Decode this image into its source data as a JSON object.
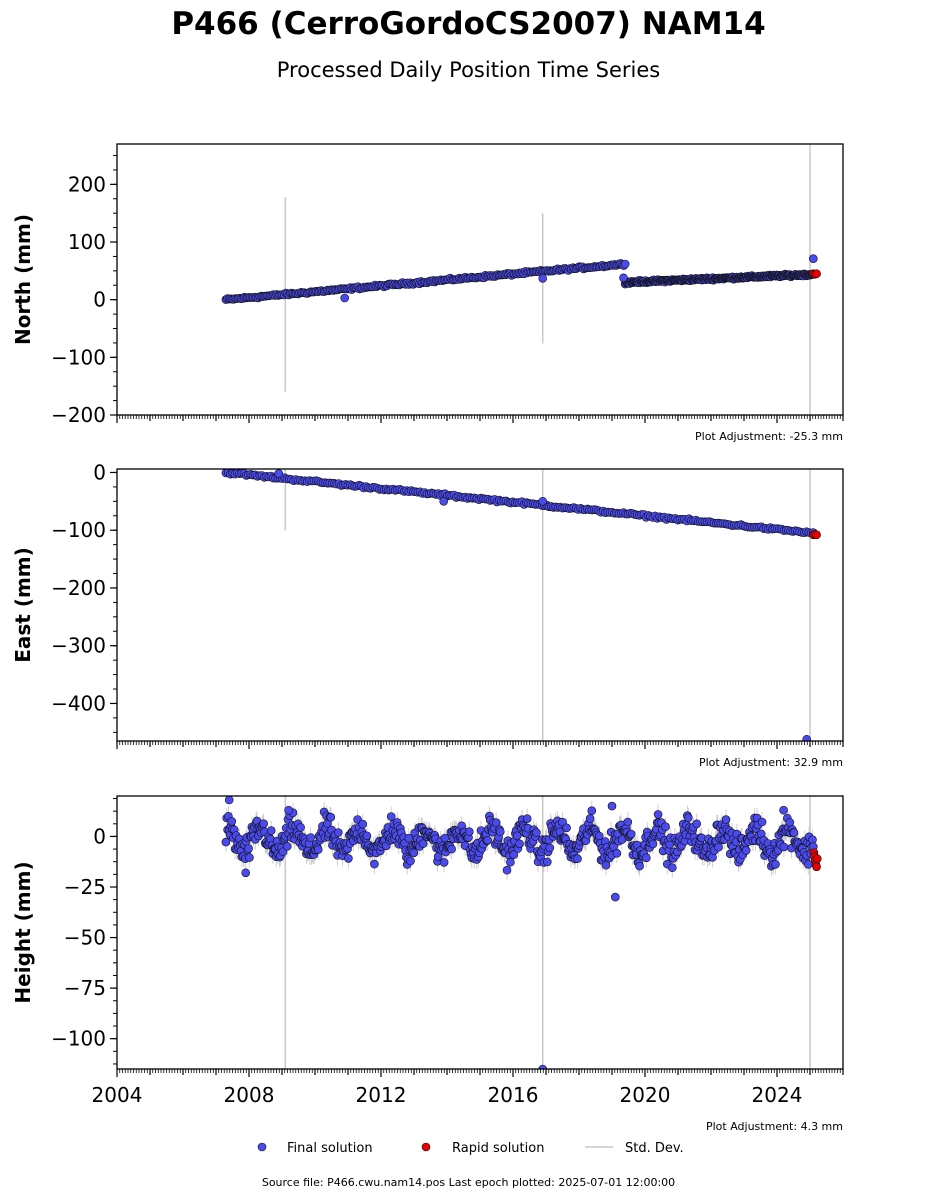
{
  "header": {
    "title": "P466 (CerroGordoCS2007) NAM14",
    "subtitle": "Processed Daily Position Time Series"
  },
  "legend": {
    "final": "Final solution",
    "rapid": "Rapid solution",
    "stddev": "Std. Dev."
  },
  "footer": {
    "source": "Source file: P466.cwu.nam14.pos  Last epoch plotted: 2025-07-01 12:00:00"
  },
  "colors": {
    "final": "#4a4aee",
    "rapid": "#e80000",
    "stddev": "#c8c8c8",
    "edge": "#101010"
  },
  "chart_data": [
    {
      "type": "scatter",
      "ylabel": "North (mm)",
      "ylim": [
        -200,
        270
      ],
      "yticks": [
        200,
        100,
        0,
        -100,
        -200
      ],
      "xlim": [
        2004,
        2026
      ],
      "adjustment": "Plot Adjustment: -25.3 mm",
      "series": [
        {
          "name": "Final solution",
          "segments": [
            {
              "x": [
                2007.3,
                2019.4
              ],
              "y": [
                0,
                62
              ]
            },
            {
              "x": [
                2019.4,
                2025.1
              ],
              "y": [
                30,
                44
              ]
            }
          ],
          "outliers": [
            [
              2010.9,
              3
            ],
            [
              2016.9,
              37
            ],
            [
              2025.1,
              71
            ],
            [
              2019.35,
              38
            ]
          ]
        },
        {
          "name": "Rapid solution",
          "points": [
            [
              2025.1,
              45
            ],
            [
              2025.15,
              44
            ],
            [
              2025.2,
              45
            ]
          ]
        }
      ],
      "error_bars": [
        [
          2009.1,
          -160,
          178
        ],
        [
          2016.9,
          -76,
          150
        ],
        [
          2025.0,
          -200,
          270
        ]
      ]
    },
    {
      "type": "scatter",
      "ylabel": "East (mm)",
      "ylim": [
        -465,
        6
      ],
      "yticks": [
        0,
        -100,
        -200,
        -300,
        -400
      ],
      "xlim": [
        2004,
        2026
      ],
      "adjustment": "Plot Adjustment: 32.9 mm",
      "series": [
        {
          "name": "Final solution",
          "segments": [
            {
              "x": [
                2007.3,
                2025.1
              ],
              "y": [
                0,
                -105
              ]
            }
          ],
          "outliers": [
            [
              2024.9,
              -462
            ],
            [
              2008.9,
              -2
            ],
            [
              2013.9,
              -50
            ],
            [
              2016.9,
              -50
            ]
          ]
        },
        {
          "name": "Rapid solution",
          "points": [
            [
              2025.1,
              -108
            ],
            [
              2025.15,
              -107
            ],
            [
              2025.2,
              -108
            ]
          ]
        }
      ],
      "error_bars": [
        [
          2009.1,
          -100,
          6
        ],
        [
          2016.9,
          -465,
          6
        ],
        [
          2025.0,
          -465,
          6
        ]
      ]
    },
    {
      "type": "scatter",
      "ylabel": "Height (mm)",
      "ylim": [
        -115,
        20
      ],
      "yticks": [
        0,
        -25,
        -50,
        -75,
        -100
      ],
      "xlim": [
        2004,
        2026
      ],
      "xticks": [
        2004,
        2008,
        2012,
        2016,
        2020,
        2024
      ],
      "adjustment": "Plot Adjustment: 4.3 mm",
      "series": [
        {
          "name": "Final solution",
          "seasonal": {
            "x": [
              2007.3,
              2025.1
            ],
            "mean": -2,
            "amplitude": 6,
            "noise": 5
          },
          "outliers": [
            [
              2007.4,
              18
            ],
            [
              2009.2,
              13
            ],
            [
              2016.9,
              -115
            ],
            [
              2019.0,
              15
            ],
            [
              2019.1,
              -30
            ],
            [
              2024.2,
              13
            ],
            [
              2007.9,
              -18
            ]
          ]
        },
        {
          "name": "Rapid solution",
          "points": [
            [
              2025.12,
              -8
            ],
            [
              2025.14,
              -10
            ],
            [
              2025.16,
              -12
            ],
            [
              2025.18,
              -14
            ],
            [
              2025.2,
              -15
            ],
            [
              2025.22,
              -11
            ]
          ]
        }
      ],
      "error_bars": [
        [
          2009.1,
          -115,
          20
        ],
        [
          2016.9,
          -115,
          20
        ],
        [
          2025.0,
          -115,
          20
        ]
      ]
    }
  ]
}
